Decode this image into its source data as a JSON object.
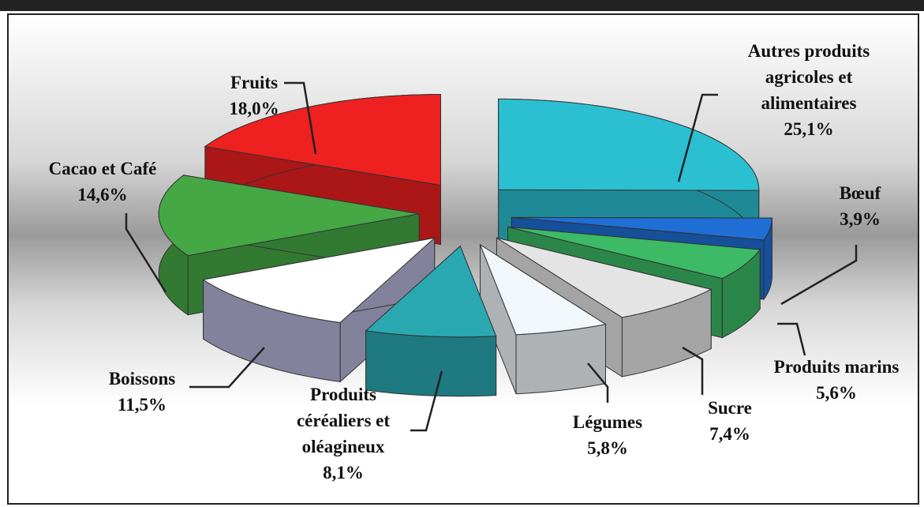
{
  "chart_data": {
    "type": "pie3d",
    "categories": [
      "Autres produits agricoles et alimentaires",
      "Bœuf",
      "Produits marins",
      "Sucre",
      "Légumes",
      "Produits céréaliers et oléagineux",
      "Boissons",
      "Cacao et Café",
      "Fruits"
    ],
    "values": [
      25.1,
      3.9,
      5.6,
      7.4,
      5.8,
      8.1,
      11.5,
      14.6,
      18.0
    ],
    "value_labels": [
      "25,1%",
      "3,9%",
      "5,6%",
      "7,4%",
      "5,8%",
      "8,1%",
      "11,5%",
      "14,6%",
      "18,0%"
    ],
    "colors": [
      "#2bbfd2",
      "#1f6fd6",
      "#3cba66",
      "#e4e4e4",
      "#f2f7fb",
      "#2aa8b2",
      "#ffffff",
      "#45a845",
      "#ee2020"
    ]
  }
}
